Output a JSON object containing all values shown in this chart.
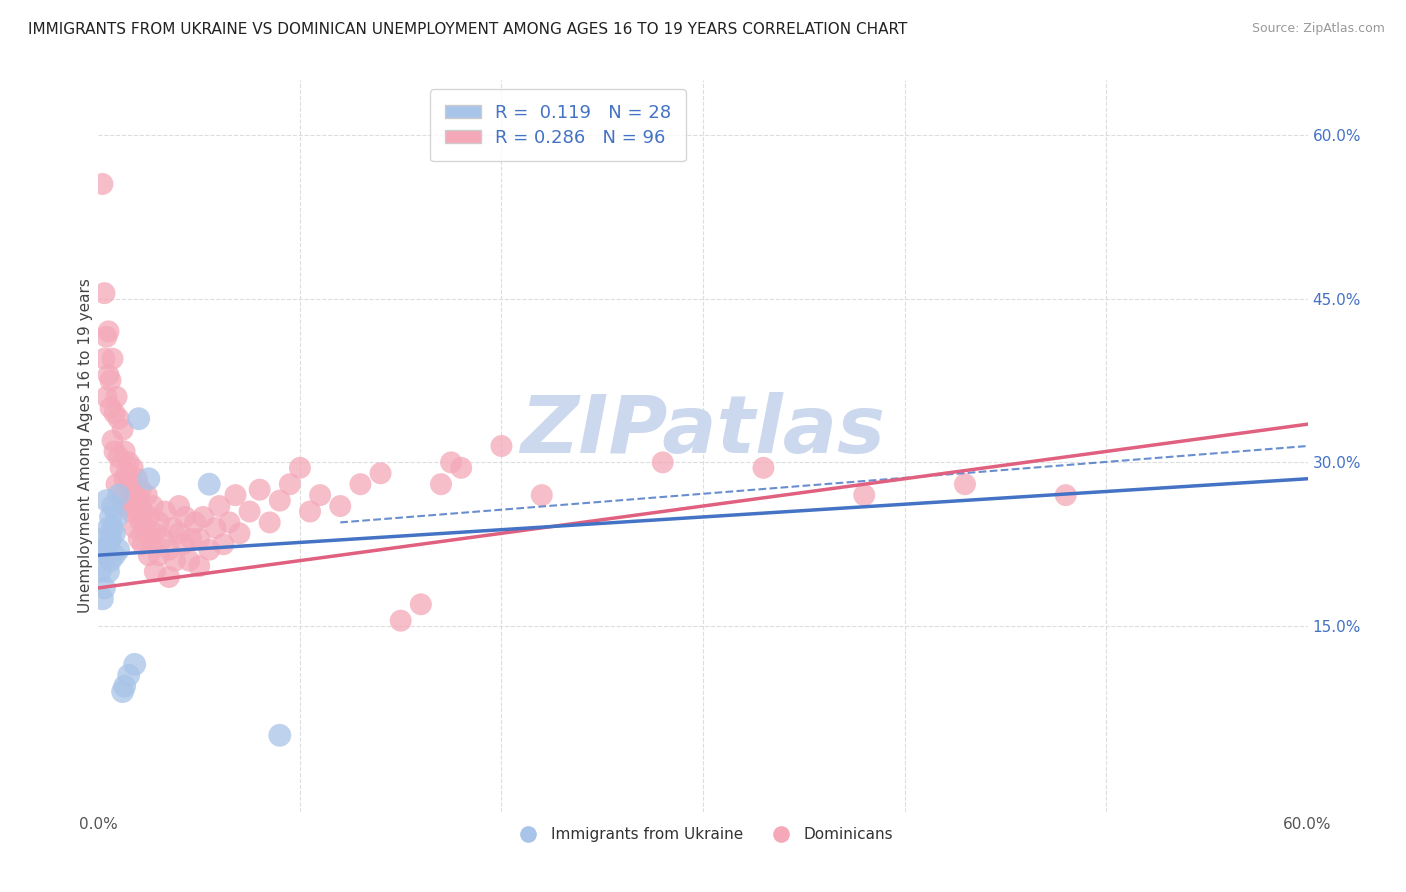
{
  "title": "IMMIGRANTS FROM UKRAINE VS DOMINICAN UNEMPLOYMENT AMONG AGES 16 TO 19 YEARS CORRELATION CHART",
  "source": "Source: ZipAtlas.com",
  "ylabel": "Unemployment Among Ages 16 to 19 years",
  "xlim": [
    0.0,
    0.6
  ],
  "ylim": [
    -0.02,
    0.65
  ],
  "right_yticks": [
    0.15,
    0.3,
    0.45,
    0.6
  ],
  "right_yticklabels": [
    "15.0%",
    "30.0%",
    "45.0%",
    "60.0%"
  ],
  "ukraine_R": 0.119,
  "ukraine_N": 28,
  "dominican_R": 0.286,
  "dominican_N": 96,
  "ukraine_color": "#a8c4e8",
  "dominican_color": "#f4a8b8",
  "ukraine_line_color": "#4472c4",
  "dominican_line_color": "#e06080",
  "ukraine_trend": [
    0.0,
    0.6,
    0.215,
    0.285
  ],
  "dominican_trend": [
    0.0,
    0.6,
    0.185,
    0.335
  ],
  "ukraine_dashed": [
    0.12,
    0.6,
    0.245,
    0.315
  ],
  "ukraine_scatter": [
    [
      0.001,
      0.2
    ],
    [
      0.002,
      0.175
    ],
    [
      0.002,
      0.23
    ],
    [
      0.003,
      0.22
    ],
    [
      0.003,
      0.185
    ],
    [
      0.004,
      0.265
    ],
    [
      0.004,
      0.215
    ],
    [
      0.005,
      0.24
    ],
    [
      0.005,
      0.2
    ],
    [
      0.005,
      0.225
    ],
    [
      0.006,
      0.25
    ],
    [
      0.006,
      0.21
    ],
    [
      0.006,
      0.23
    ],
    [
      0.007,
      0.26
    ],
    [
      0.007,
      0.24
    ],
    [
      0.008,
      0.215
    ],
    [
      0.008,
      0.235
    ],
    [
      0.009,
      0.25
    ],
    [
      0.01,
      0.27
    ],
    [
      0.01,
      0.22
    ],
    [
      0.012,
      0.09
    ],
    [
      0.013,
      0.095
    ],
    [
      0.015,
      0.105
    ],
    [
      0.018,
      0.115
    ],
    [
      0.02,
      0.34
    ],
    [
      0.025,
      0.285
    ],
    [
      0.055,
      0.28
    ],
    [
      0.09,
      0.05
    ]
  ],
  "dominican_scatter": [
    [
      0.002,
      0.555
    ],
    [
      0.003,
      0.455
    ],
    [
      0.003,
      0.395
    ],
    [
      0.004,
      0.415
    ],
    [
      0.004,
      0.36
    ],
    [
      0.005,
      0.38
    ],
    [
      0.005,
      0.42
    ],
    [
      0.006,
      0.35
    ],
    [
      0.006,
      0.375
    ],
    [
      0.007,
      0.32
    ],
    [
      0.007,
      0.395
    ],
    [
      0.008,
      0.345
    ],
    [
      0.008,
      0.31
    ],
    [
      0.009,
      0.36
    ],
    [
      0.009,
      0.28
    ],
    [
      0.01,
      0.305
    ],
    [
      0.01,
      0.34
    ],
    [
      0.011,
      0.295
    ],
    [
      0.012,
      0.33
    ],
    [
      0.012,
      0.27
    ],
    [
      0.013,
      0.285
    ],
    [
      0.013,
      0.31
    ],
    [
      0.014,
      0.26
    ],
    [
      0.014,
      0.29
    ],
    [
      0.015,
      0.275
    ],
    [
      0.015,
      0.3
    ],
    [
      0.016,
      0.255
    ],
    [
      0.016,
      0.28
    ],
    [
      0.017,
      0.265
    ],
    [
      0.017,
      0.295
    ],
    [
      0.018,
      0.24
    ],
    [
      0.018,
      0.27
    ],
    [
      0.019,
      0.255
    ],
    [
      0.019,
      0.285
    ],
    [
      0.02,
      0.23
    ],
    [
      0.02,
      0.265
    ],
    [
      0.021,
      0.245
    ],
    [
      0.021,
      0.275
    ],
    [
      0.022,
      0.225
    ],
    [
      0.022,
      0.255
    ],
    [
      0.023,
      0.24
    ],
    [
      0.024,
      0.27
    ],
    [
      0.025,
      0.215
    ],
    [
      0.025,
      0.25
    ],
    [
      0.026,
      0.23
    ],
    [
      0.027,
      0.26
    ],
    [
      0.028,
      0.2
    ],
    [
      0.028,
      0.235
    ],
    [
      0.03,
      0.245
    ],
    [
      0.03,
      0.215
    ],
    [
      0.032,
      0.23
    ],
    [
      0.033,
      0.255
    ],
    [
      0.035,
      0.22
    ],
    [
      0.035,
      0.195
    ],
    [
      0.037,
      0.24
    ],
    [
      0.038,
      0.21
    ],
    [
      0.04,
      0.235
    ],
    [
      0.04,
      0.26
    ],
    [
      0.042,
      0.225
    ],
    [
      0.043,
      0.25
    ],
    [
      0.045,
      0.21
    ],
    [
      0.046,
      0.23
    ],
    [
      0.048,
      0.245
    ],
    [
      0.05,
      0.205
    ],
    [
      0.05,
      0.23
    ],
    [
      0.052,
      0.25
    ],
    [
      0.055,
      0.22
    ],
    [
      0.058,
      0.24
    ],
    [
      0.06,
      0.26
    ],
    [
      0.062,
      0.225
    ],
    [
      0.065,
      0.245
    ],
    [
      0.068,
      0.27
    ],
    [
      0.07,
      0.235
    ],
    [
      0.075,
      0.255
    ],
    [
      0.08,
      0.275
    ],
    [
      0.085,
      0.245
    ],
    [
      0.09,
      0.265
    ],
    [
      0.095,
      0.28
    ],
    [
      0.1,
      0.295
    ],
    [
      0.105,
      0.255
    ],
    [
      0.11,
      0.27
    ],
    [
      0.12,
      0.26
    ],
    [
      0.13,
      0.28
    ],
    [
      0.14,
      0.29
    ],
    [
      0.15,
      0.155
    ],
    [
      0.16,
      0.17
    ],
    [
      0.17,
      0.28
    ],
    [
      0.175,
      0.3
    ],
    [
      0.18,
      0.295
    ],
    [
      0.2,
      0.315
    ],
    [
      0.22,
      0.27
    ],
    [
      0.28,
      0.3
    ],
    [
      0.33,
      0.295
    ],
    [
      0.38,
      0.27
    ],
    [
      0.43,
      0.28
    ],
    [
      0.48,
      0.27
    ]
  ],
  "watermark": "ZIPatlas",
  "watermark_color": "#ccd8ee",
  "grid_color": "#dddddd",
  "background_color": "#ffffff",
  "legend_ukraine_label": "Immigrants from Ukraine",
  "legend_dominican_label": "Dominicans"
}
